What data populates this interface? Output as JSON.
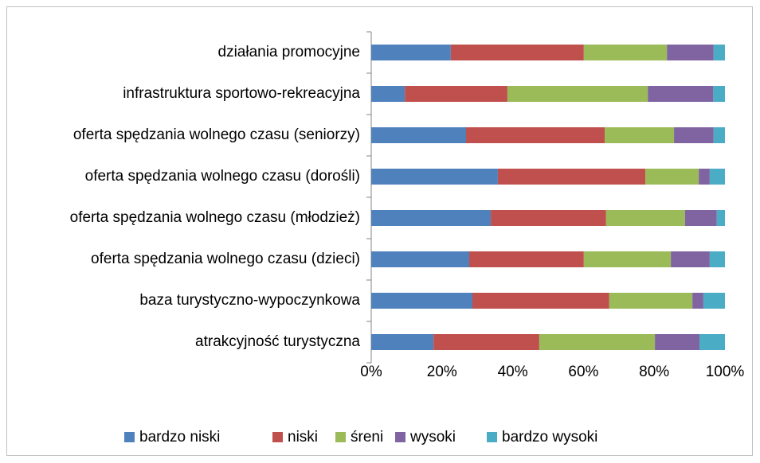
{
  "chart_data": {
    "type": "bar",
    "orientation": "horizontal",
    "stacked": true,
    "categories": [
      "działania promocyjne",
      "infrastruktura sportowo-rekreacyjna",
      "oferta spędzania wolnego czasu (seniorzy)",
      "oferta spędzania wolnego czasu (dorośli)",
      "oferta spędzania wolnego czasu (młodzież)",
      "oferta spędzania wolnego czasu (dzieci)",
      "baza turystyczno-wypoczynkowa",
      "atrakcyjność turystyczna"
    ],
    "series": [
      {
        "name": "bardzo niski",
        "color": "#4f81bd",
        "values": [
          22.5,
          9.5,
          26.8,
          35.8,
          33.8,
          27.7,
          28.6,
          17.6
        ]
      },
      {
        "name": "niski",
        "color": "#c0504d",
        "values": [
          37.6,
          29,
          39.2,
          41.7,
          32.6,
          32.4,
          38.7,
          29.9
        ]
      },
      {
        "name": "śreni",
        "color": "#9bbb59",
        "values": [
          23.5,
          39.7,
          19.6,
          15.1,
          22.3,
          24.6,
          23.5,
          32.7
        ]
      },
      {
        "name": "wysoki",
        "color": "#8064a2",
        "values": [
          13.2,
          18.5,
          11.2,
          3.1,
          9,
          11,
          3.1,
          12.6
        ]
      },
      {
        "name": "bardzo wysoki",
        "color": "#4bacc6",
        "values": [
          3.2,
          3.3,
          3.2,
          4.3,
          2.3,
          4.3,
          6.1,
          7.2
        ]
      }
    ],
    "xlim": [
      0,
      100
    ],
    "xticks": [
      {
        "value": 0,
        "label": "0%"
      },
      {
        "value": 20,
        "label": "20%"
      },
      {
        "value": 40,
        "label": "40%"
      },
      {
        "value": 60,
        "label": "60%"
      },
      {
        "value": 80,
        "label": "80%"
      },
      {
        "value": 100,
        "label": "100%"
      }
    ],
    "legend": "bottom"
  }
}
